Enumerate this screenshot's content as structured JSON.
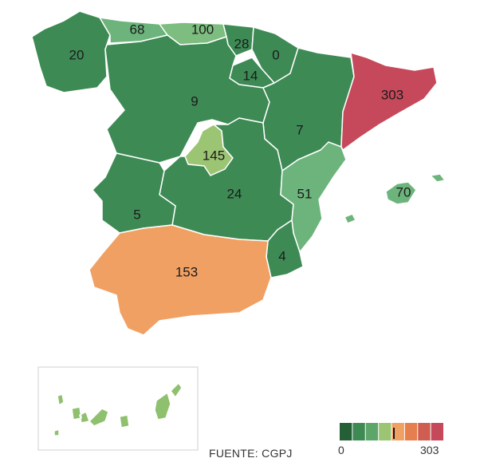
{
  "regions": [
    {
      "id": "galicia",
      "value": "20",
      "color": "#3e8a55"
    },
    {
      "id": "asturias",
      "value": "68",
      "color": "#6cb47b"
    },
    {
      "id": "cantabria",
      "value": "100",
      "color": "#7dbd7f"
    },
    {
      "id": "pais-vasco",
      "value": "28",
      "color": "#3e8a55"
    },
    {
      "id": "navarra",
      "value": "0",
      "color": "#3e8a55"
    },
    {
      "id": "la-rioja",
      "value": "14",
      "color": "#3e8a55"
    },
    {
      "id": "castilla-y-leon",
      "value": "9",
      "color": "#3e8a55"
    },
    {
      "id": "aragon",
      "value": "7",
      "color": "#3e8a55"
    },
    {
      "id": "cataluna",
      "value": "303",
      "color": "#c5495a"
    },
    {
      "id": "madrid",
      "value": "145",
      "color": "#9bc473"
    },
    {
      "id": "castilla-la-mancha",
      "value": "24",
      "color": "#3e8a55"
    },
    {
      "id": "valencia",
      "value": "51",
      "color": "#6cb47b"
    },
    {
      "id": "baleares",
      "value": "70",
      "color": "#6cb47b"
    },
    {
      "id": "extremadura",
      "value": "5",
      "color": "#3e8a55"
    },
    {
      "id": "murcia",
      "value": "4",
      "color": "#3e8a55"
    },
    {
      "id": "andalucia",
      "value": "153",
      "color": "#f1a064"
    },
    {
      "id": "canarias",
      "value": "",
      "color": "#8fc06e"
    }
  ],
  "legend": {
    "min_label": "0",
    "max_label": "303",
    "colors": [
      "#245f36",
      "#3e8a55",
      "#5ea56a",
      "#9bc473",
      "#f1a064",
      "#e57f4e",
      "#cf5e50",
      "#c5495a"
    ]
  },
  "source": "FUENTE: CGPJ"
}
